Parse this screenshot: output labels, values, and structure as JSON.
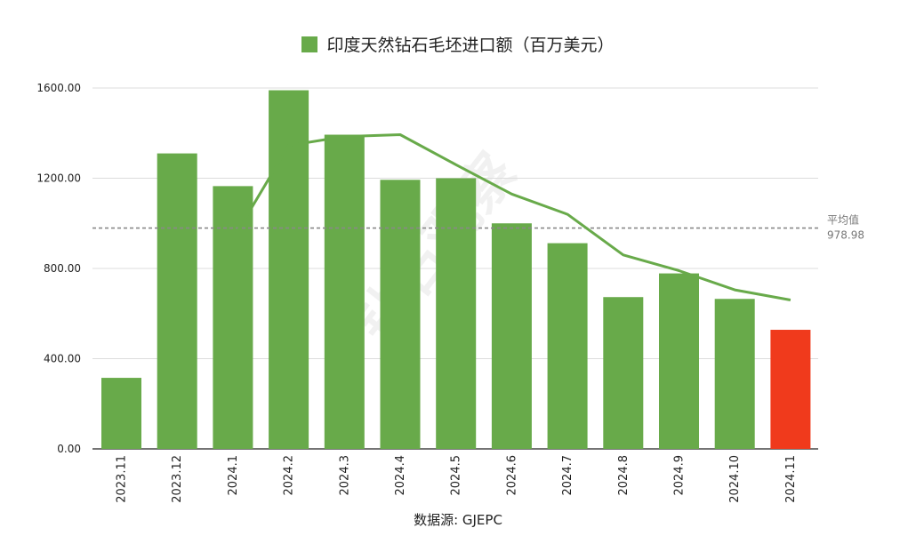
{
  "chart_data": {
    "type": "bar",
    "legend": {
      "label": "印度天然钻石毛坯进口额（百万美元）",
      "color": "#68aa4a",
      "placement": "top-center"
    },
    "categories": [
      "2023.11",
      "2023.12",
      "2024.1",
      "2024.2",
      "2024.3",
      "2024.4",
      "2024.5",
      "2024.6",
      "2024.7",
      "2024.8",
      "2024.9",
      "2024.10",
      "2024.11"
    ],
    "series": [
      {
        "name": "印度天然钻石毛坯进口额（百万美元）",
        "type": "bar",
        "values": [
          315,
          1310,
          1165,
          1590,
          1393,
          1193,
          1200,
          1000,
          912,
          673,
          778,
          665,
          528
        ],
        "color": "#68aa4a",
        "highlight_color": "#f03a1c",
        "highlight_index": 12
      },
      {
        "type": "line",
        "values": [
          null,
          null,
          930,
          1345,
          1385,
          1393,
          1260,
          1130,
          1040,
          860,
          790,
          705,
          660
        ],
        "color": "#68aa4a"
      }
    ],
    "y_ticks": [
      "0.00",
      "400.00",
      "800.00",
      "1200.00",
      "1600.00"
    ],
    "ylim": [
      0,
      1600
    ],
    "grid": true,
    "average": {
      "label": "平均值",
      "value": 978.98,
      "value_label": "978.98"
    },
    "source": "数据源: GJEPC",
    "watermark": "钻石观察"
  }
}
